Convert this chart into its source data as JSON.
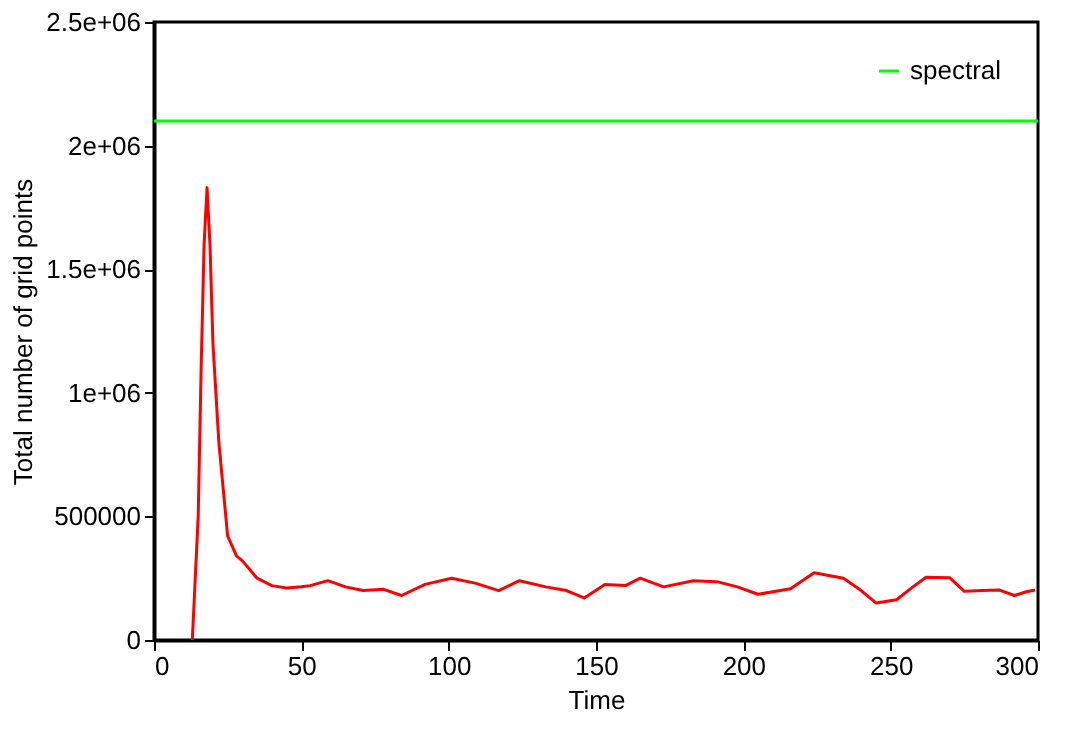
{
  "chart_data": {
    "type": "line",
    "xlabel": "Time",
    "ylabel": "Total number of grid points",
    "xlim": [
      0,
      300
    ],
    "ylim": [
      0,
      2500000
    ],
    "xticks": [
      0,
      50,
      100,
      150,
      200,
      250,
      300
    ],
    "yticks": [
      0,
      {
        "value": 500000,
        "label": "500000"
      },
      {
        "value": 1000000,
        "label": "1e+06"
      },
      {
        "value": 1500000,
        "label": "1.5e+06"
      },
      {
        "value": 2000000,
        "label": "2e+06"
      },
      {
        "value": 2500000,
        "label": "2.5e+06"
      }
    ],
    "grid": false,
    "legend": "top right",
    "marker": "none",
    "line_style": "solid",
    "series": [
      {
        "color": "#ff0000",
        "x": [
          13,
          15,
          16,
          17,
          18,
          19,
          20,
          22,
          25,
          28,
          30,
          35,
          40,
          45,
          50,
          53,
          59,
          65,
          71,
          78,
          84,
          92,
          101,
          109,
          117,
          124,
          133,
          140,
          146,
          153,
          160,
          165,
          173,
          183,
          191,
          198,
          205,
          210,
          216,
          224,
          234,
          240,
          245,
          252,
          257,
          262,
          270,
          275,
          281,
          287,
          292,
          296,
          299
        ],
        "values": [
          0,
          500000,
          1100000,
          1600000,
          1830000,
          1600000,
          1200000,
          800000,
          420000,
          340000,
          320000,
          250000,
          220000,
          210000,
          215000,
          220000,
          240000,
          215000,
          200000,
          205000,
          180000,
          225000,
          250000,
          230000,
          200000,
          240000,
          215000,
          200000,
          170000,
          225000,
          220000,
          250000,
          215000,
          240000,
          236000,
          215000,
          185000,
          195000,
          207000,
          272000,
          250000,
          200000,
          150000,
          163000,
          210000,
          254000,
          252000,
          197000,
          200000,
          202000,
          180000,
          195000,
          202000
        ]
      },
      {
        "name": "spectral",
        "color": "#00ff00",
        "x": [
          0,
          300
        ],
        "values": [
          2100000,
          2100000
        ]
      }
    ]
  }
}
